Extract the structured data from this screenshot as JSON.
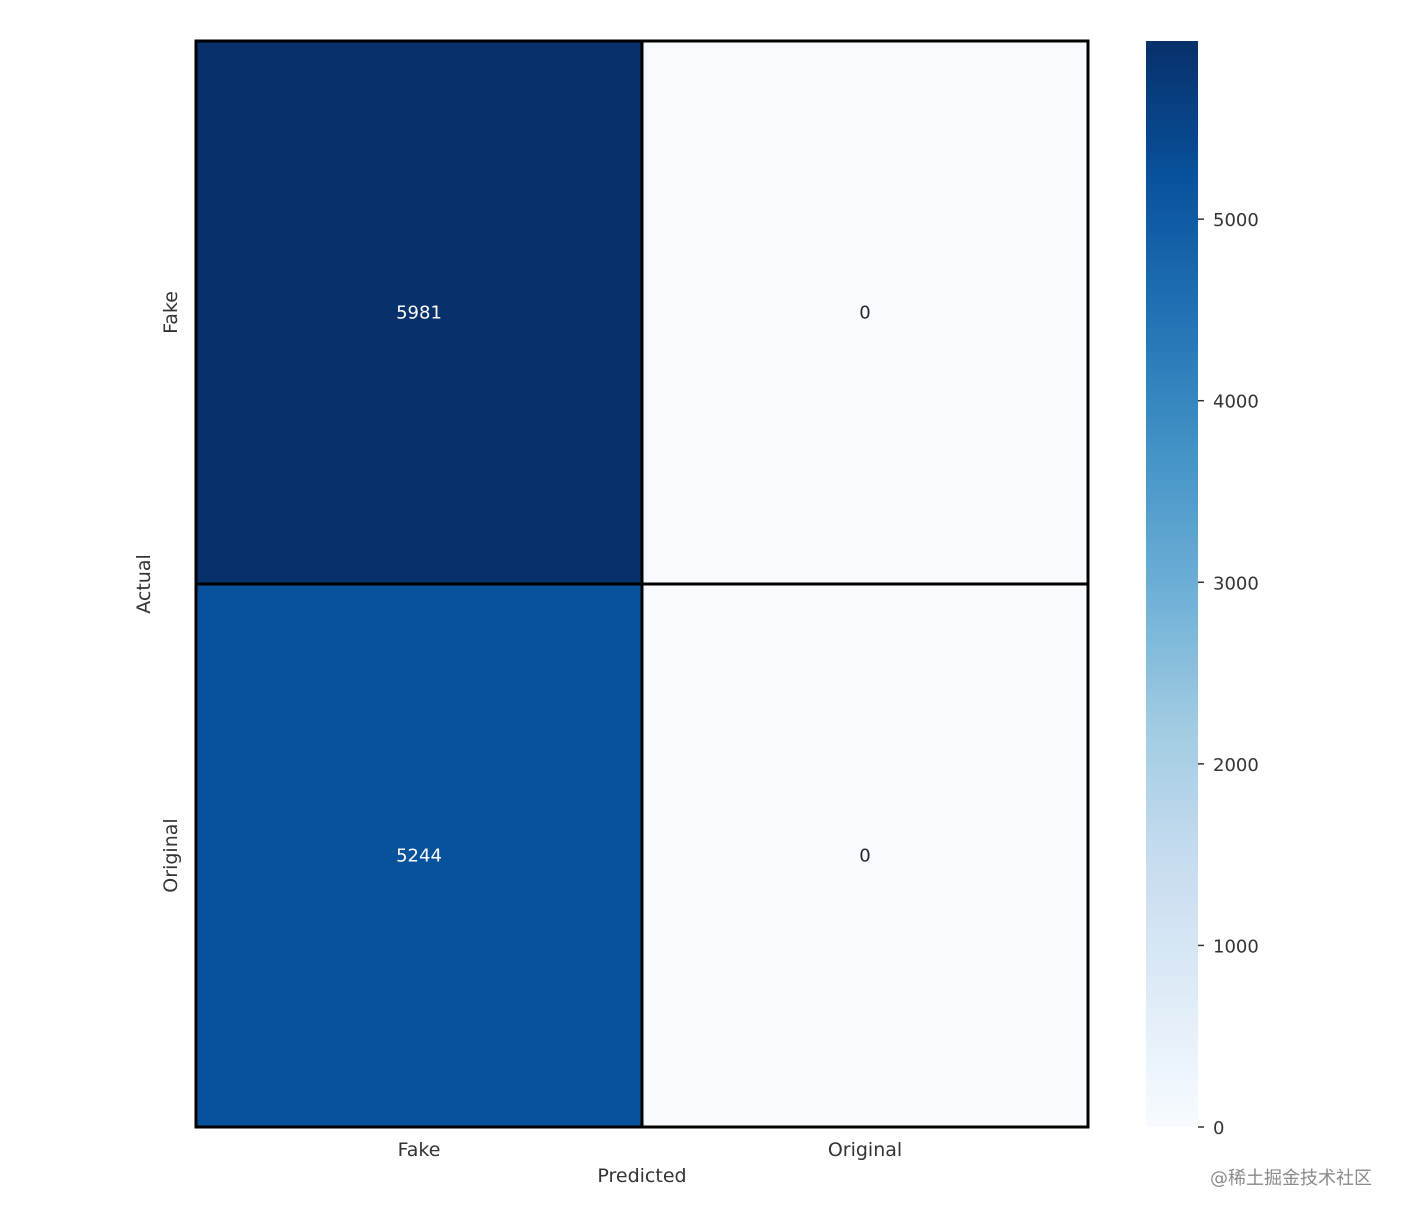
{
  "chart_data": {
    "type": "heatmap",
    "title": "",
    "xlabel": "Predicted",
    "ylabel": "Actual",
    "x_categories": [
      "Fake",
      "Original"
    ],
    "y_categories": [
      "Fake",
      "Original"
    ],
    "matrix": [
      [
        5981,
        0
      ],
      [
        5244,
        0
      ]
    ],
    "colormap": "Blues",
    "colorbar": {
      "vmin": 0,
      "vmax": 5981,
      "ticks": [
        0,
        1000,
        2000,
        3000,
        4000,
        5000
      ]
    }
  },
  "colors": {
    "low": "#f7fbff",
    "high": "#08306b",
    "dark_text": "#262626",
    "light_text": "#ffffff"
  },
  "watermark": "@稀土掘金技术社区"
}
